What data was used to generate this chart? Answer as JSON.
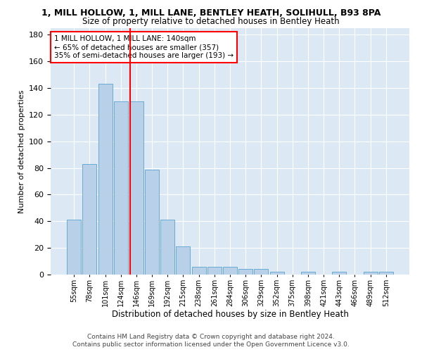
{
  "title": "1, MILL HOLLOW, 1, MILL LANE, BENTLEY HEATH, SOLIHULL, B93 8PA",
  "subtitle": "Size of property relative to detached houses in Bentley Heath",
  "xlabel": "Distribution of detached houses by size in Bentley Heath",
  "ylabel": "Number of detached properties",
  "footer_line1": "Contains HM Land Registry data © Crown copyright and database right 2024.",
  "footer_line2": "Contains public sector information licensed under the Open Government Licence v3.0.",
  "annotation_line1": "1 MILL HOLLOW, 1 MILL LANE: 140sqm",
  "annotation_line2": "← 65% of detached houses are smaller (357)",
  "annotation_line3": "35% of semi-detached houses are larger (193) →",
  "bar_categories": [
    "55sqm",
    "78sqm",
    "101sqm",
    "124sqm",
    "146sqm",
    "169sqm",
    "192sqm",
    "215sqm",
    "238sqm",
    "261sqm",
    "284sqm",
    "306sqm",
    "329sqm",
    "352sqm",
    "375sqm",
    "398sqm",
    "421sqm",
    "443sqm",
    "466sqm",
    "489sqm",
    "512sqm"
  ],
  "bar_values": [
    41,
    83,
    143,
    130,
    130,
    79,
    41,
    21,
    6,
    6,
    6,
    4,
    4,
    2,
    0,
    2,
    0,
    2,
    0,
    2,
    2
  ],
  "bar_color": "#b8d0e8",
  "bar_edge_color": "#6aaad4",
  "bg_color": "#dce9f5",
  "vline_color": "red",
  "vline_index": 4,
  "ylim": [
    0,
    185
  ],
  "yticks": [
    0,
    20,
    40,
    60,
    80,
    100,
    120,
    140,
    160,
    180
  ],
  "title_fontsize": 9,
  "subtitle_fontsize": 8.5,
  "ylabel_fontsize": 8,
  "xlabel_fontsize": 8.5,
  "tick_fontsize": 8,
  "annot_fontsize": 7.5,
  "footer_fontsize": 6.5
}
